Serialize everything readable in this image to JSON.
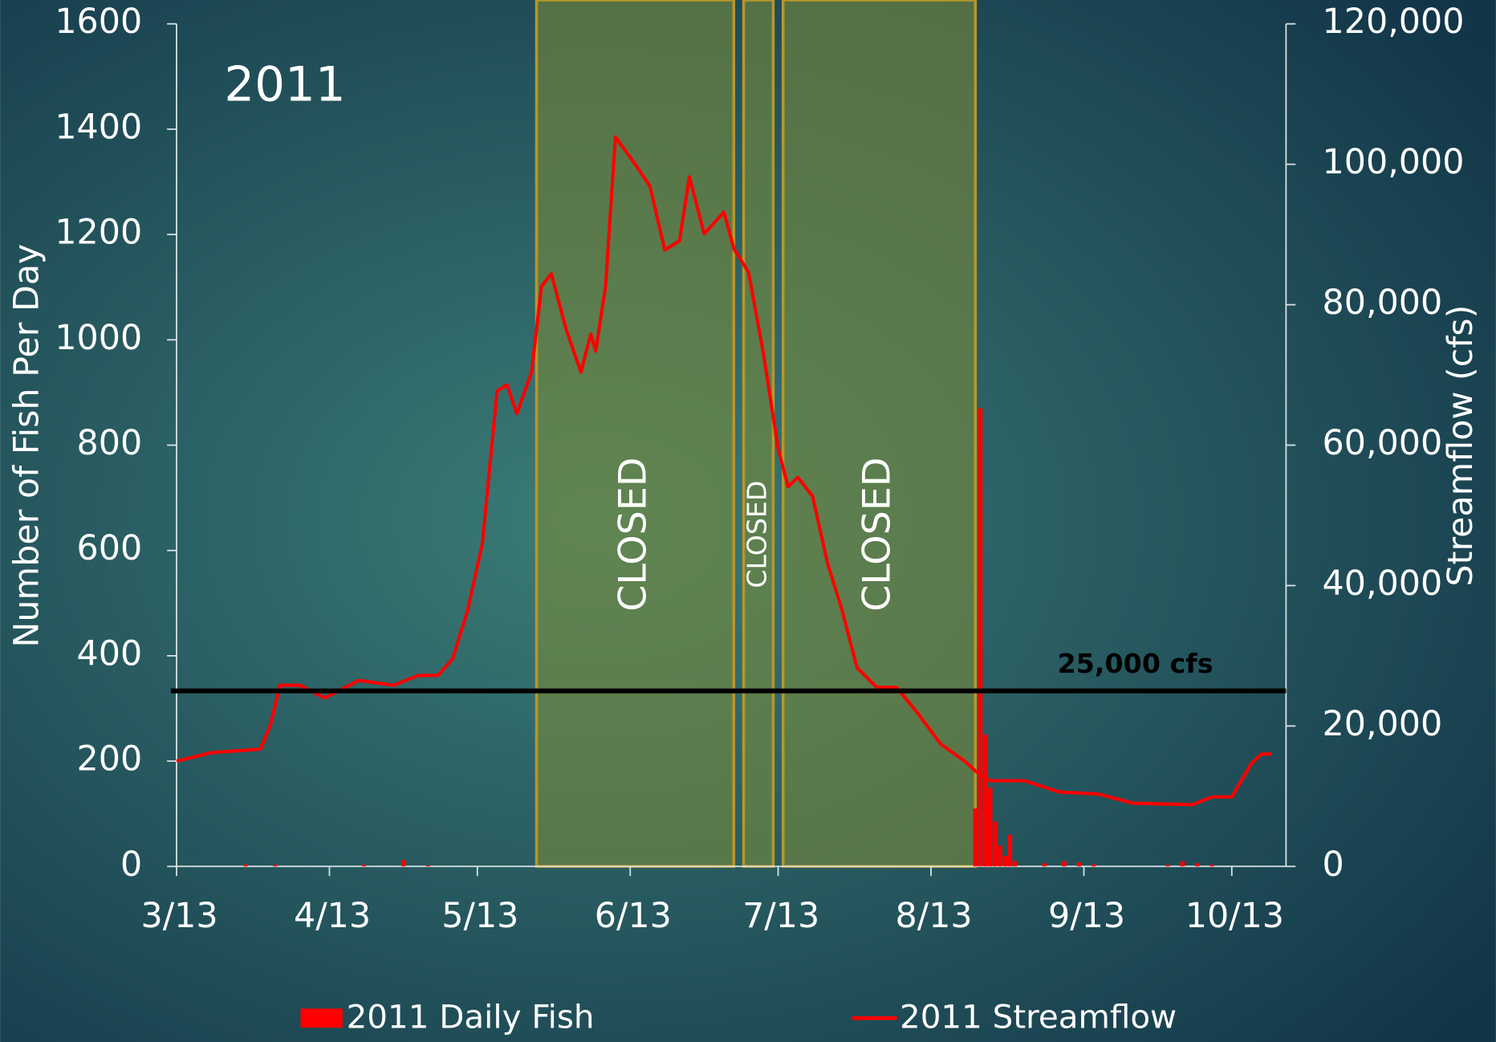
{
  "chart_data": {
    "type": "bar_line",
    "annotation": "2011",
    "y_label": "Number of Fish Per Day",
    "y2_label": "Streamflow (cfs)",
    "xlim": [
      "3/13",
      "10/24"
    ],
    "xticks": [
      "3/13",
      "4/13",
      "5/13",
      "6/13",
      "7/13",
      "8/13",
      "9/13",
      "10/13"
    ],
    "ylim": [
      0,
      1600
    ],
    "yticks": [
      0,
      200,
      400,
      600,
      800,
      1000,
      1200,
      1400,
      1600
    ],
    "y2lim": [
      0,
      120000
    ],
    "y2ticks": [
      0,
      {
        "value": 20000,
        "label": "20,000"
      },
      {
        "value": 40000,
        "label": "40,000"
      },
      {
        "value": 60000,
        "label": "60,000"
      },
      {
        "value": 80000,
        "label": "80,000"
      },
      {
        "value": 100000,
        "label": "100,000"
      },
      {
        "value": 120000,
        "label": "120,000"
      }
    ],
    "series": [
      {
        "name": "2011 Daily Fish",
        "type": "bar",
        "color": "#ff0000",
        "x": [
          "3/27",
          "4/2",
          "4/20",
          "4/28",
          "5/3",
          "8/22",
          "8/23",
          "8/24",
          "8/25",
          "8/26",
          "8/27",
          "8/28",
          "8/29",
          "8/30",
          "9/5",
          "9/9",
          "9/12",
          "9/15",
          "9/30",
          "10/3",
          "10/6",
          "10/9"
        ],
        "values": [
          4,
          3,
          3,
          12,
          2,
          110,
          870,
          250,
          150,
          85,
          40,
          20,
          60,
          10,
          6,
          10,
          8,
          4,
          3,
          10,
          6,
          3
        ]
      },
      {
        "name": "2011 Streamflow",
        "type": "line",
        "axis": "y2",
        "color": "#ff0000",
        "x": [
          "3/13",
          "3/20",
          "3/30",
          "4/1",
          "4/3",
          "4/7",
          "4/12",
          "4/19",
          "4/26",
          "5/1",
          "5/5",
          "5/8",
          "5/11",
          "5/14",
          "5/17",
          "5/19",
          "5/21",
          "5/24",
          "5/26",
          "5/28",
          "5/31",
          "6/3",
          "6/5",
          "6/6",
          "6/8",
          "6/10",
          "6/14",
          "6/17",
          "6/20",
          "6/23",
          "6/25",
          "6/28",
          "7/2",
          "7/4",
          "7/7",
          "7/10",
          "7/13",
          "7/15",
          "7/17",
          "7/20",
          "7/23",
          "7/26",
          "7/29",
          "8/2",
          "8/6",
          "8/10",
          "8/15",
          "8/20",
          "8/22",
          "8/25",
          "9/1",
          "9/8",
          "9/16",
          "9/23",
          "10/5",
          "10/9",
          "10/13",
          "10/17",
          "10/19",
          "10/21"
        ],
        "values": [
          15000,
          16200,
          16700,
          20100,
          25800,
          25800,
          24000,
          26500,
          25800,
          27200,
          27200,
          29600,
          36400,
          45900,
          67700,
          68600,
          64500,
          70400,
          82600,
          84400,
          76500,
          70400,
          75800,
          73400,
          82600,
          103900,
          100000,
          96900,
          87800,
          89100,
          98200,
          90100,
          93200,
          88000,
          84600,
          73100,
          59500,
          54100,
          55400,
          52700,
          43200,
          36400,
          28300,
          25500,
          25500,
          22100,
          17400,
          14900,
          13600,
          12200,
          12200,
          10600,
          10300,
          9000,
          8800,
          9900,
          9900,
          14700,
          16000,
          16000
        ]
      }
    ],
    "threshold": {
      "value": 25000,
      "label": "25,000 cfs",
      "axis": "y2",
      "color": "#000000"
    },
    "closures": [
      {
        "start": "5/25",
        "end": "7/4",
        "label": "CLOSED"
      },
      {
        "start": "7/6",
        "end": "7/12",
        "label": "CLOSED"
      },
      {
        "start": "7/14",
        "end": "8/22",
        "label": "CLOSED"
      }
    ],
    "closure_color": "#7a8a3a",
    "closure_border": "#b8962a"
  }
}
